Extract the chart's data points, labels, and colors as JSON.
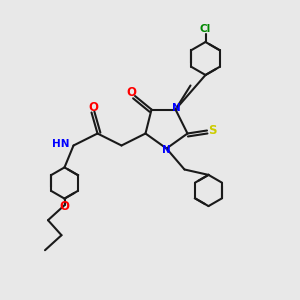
{
  "bg_color": "#e8e8e8",
  "bond_color": "#1a1a1a",
  "bond_lw": 1.5,
  "atom_colors": {
    "N": "#0000ff",
    "O": "#ff0000",
    "S": "#cccc00",
    "Cl": "#008800",
    "H": "#4488bb",
    "C": "#1a1a1a"
  },
  "font_size": 7.5,
  "fig_size": [
    3.0,
    3.0
  ],
  "dpi": 100
}
